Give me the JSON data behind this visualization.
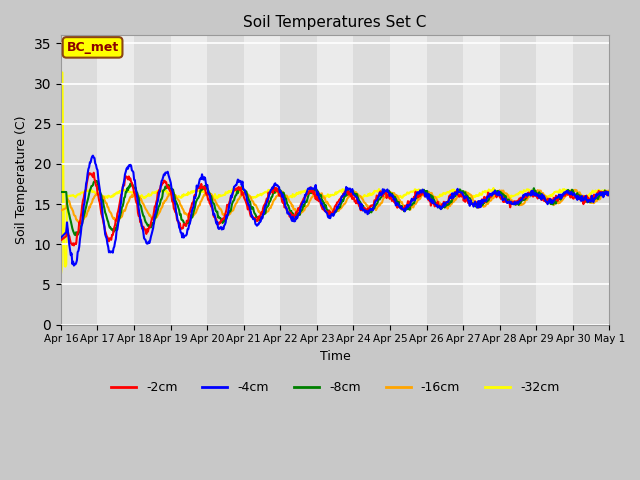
{
  "title": "Soil Temperatures Set C",
  "xlabel": "Time",
  "ylabel": "Soil Temperature (C)",
  "ylim": [
    0,
    36
  ],
  "yticks": [
    0,
    5,
    10,
    15,
    20,
    25,
    30,
    35
  ],
  "annotation": "BC_met",
  "legend_labels": [
    "-2cm",
    "-4cm",
    "-8cm",
    "-16cm",
    "-32cm"
  ],
  "line_colors": [
    "red",
    "blue",
    "green",
    "orange",
    "yellow"
  ],
  "n_days": 15,
  "points_per_day": 48,
  "xticklabels": [
    "Apr 16",
    "Apr 17",
    "Apr 18",
    "Apr 19",
    "Apr 20",
    "Apr 21",
    "Apr 22",
    "Apr 23",
    "Apr 24",
    "Apr 25",
    "Apr 26",
    "Apr 27",
    "Apr 28",
    "Apr 29",
    "Apr 30",
    "May 1"
  ],
  "band_colors": [
    "#dcdcdc",
    "#ebebeb"
  ],
  "fig_bg": "#c8c8c8",
  "ax_bg": "#e8e8e8"
}
